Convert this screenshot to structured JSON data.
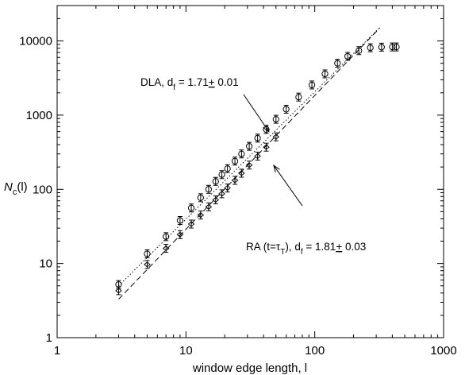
{
  "chart_data": {
    "type": "scatter",
    "xscale": "log",
    "yscale": "log",
    "xlim": [
      1,
      1000
    ],
    "ylim": [
      1,
      30000
    ],
    "xlabel": "window edge length, l",
    "ylabel": {
      "main": "N",
      "sub": "c",
      "suffix": "(l)"
    },
    "xticks": [
      {
        "value": 1,
        "label": "1"
      },
      {
        "value": 10,
        "label": "10"
      },
      {
        "value": 100,
        "label": "100"
      },
      {
        "value": 1000,
        "label": "1000"
      }
    ],
    "yticks": [
      {
        "value": 1,
        "label": "1"
      },
      {
        "value": 10,
        "label": "10"
      },
      {
        "value": 100,
        "label": "100"
      },
      {
        "value": 1000,
        "label": "1000"
      },
      {
        "value": 10000,
        "label": "10000"
      }
    ],
    "grid": false,
    "series": [
      {
        "marker": "circle-errorbar",
        "points": [
          [
            3,
            5.2
          ],
          [
            5,
            13.5
          ],
          [
            7,
            23
          ],
          [
            9,
            38
          ],
          [
            11,
            56
          ],
          [
            13,
            77
          ],
          [
            15,
            100
          ],
          [
            17,
            128
          ],
          [
            19,
            158
          ],
          [
            21,
            190
          ],
          [
            24,
            240
          ],
          [
            27,
            300
          ],
          [
            31,
            380
          ],
          [
            36,
            490
          ],
          [
            42,
            640
          ],
          [
            50,
            880
          ],
          [
            60,
            1200
          ],
          [
            75,
            1750
          ],
          [
            95,
            2550
          ],
          [
            120,
            3600
          ],
          [
            150,
            5000
          ],
          [
            180,
            6200
          ],
          [
            220,
            7400
          ],
          [
            270,
            8100
          ],
          [
            330,
            8250
          ],
          [
            400,
            8300
          ],
          [
            430,
            8300
          ]
        ]
      },
      {
        "marker": "diamond-errorbar",
        "points": [
          [
            3,
            4.3
          ],
          [
            5,
            9.7
          ],
          [
            7,
            16
          ],
          [
            9,
            24.5
          ],
          [
            11,
            34
          ],
          [
            13,
            45
          ],
          [
            15,
            58
          ],
          [
            17,
            72
          ],
          [
            19,
            87
          ],
          [
            21,
            104
          ],
          [
            24,
            132
          ],
          [
            27,
            165
          ],
          [
            31,
            212
          ],
          [
            36,
            280
          ],
          [
            42,
            370
          ],
          [
            50,
            510
          ]
        ]
      }
    ],
    "fits": [
      {
        "style": "dotted",
        "x": [
          3,
          320
        ],
        "y": [
          5.0,
          15200
        ]
      },
      {
        "style": "dashed",
        "x": [
          3,
          320
        ],
        "y": [
          3.3,
          15000
        ]
      }
    ],
    "annotations": [
      {
        "text": "DLA,  d",
        "sub": "f",
        "rest": " = 1.71",
        "pm": "+",
        "err": " 0.01",
        "arrow_from": [
          28,
          1900
        ],
        "arrow_to": [
          44,
          600
        ]
      },
      {
        "text": "RA (t=τ",
        "sub": "T",
        "rest": "),  d",
        "sub2": "f",
        "rest2": " = 1.81",
        "pm": "+",
        "err": " 0.03",
        "arrow_from": [
          80,
          60
        ],
        "arrow_to": [
          48,
          210
        ]
      }
    ]
  }
}
